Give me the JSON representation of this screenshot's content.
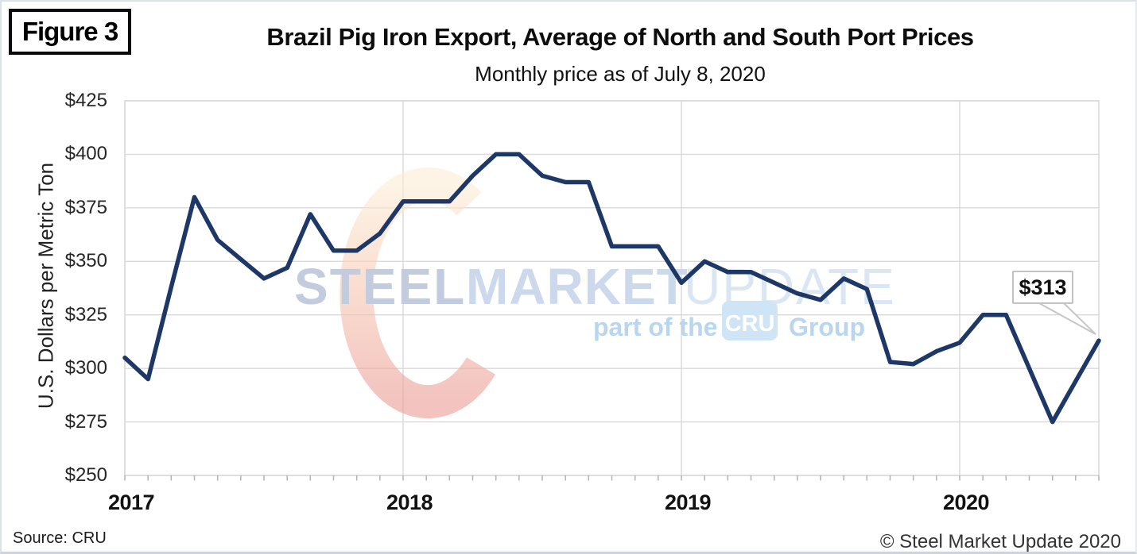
{
  "figure_label": "Figure 3",
  "title": "Brazil Pig Iron Export, Average of North and South Port Prices",
  "subtitle": "Monthly price as of July 8, 2020",
  "y_axis_title": "U.S. Dollars per Metric Ton",
  "source": "Source: CRU",
  "copyright": "© Steel Market Update 2020",
  "annotation": {
    "label": "$313",
    "value": 313
  },
  "watermark": {
    "word1": "STEEL",
    "word2": "MARKET",
    "word3": "UPDATE",
    "tagline_prefix": "part of the",
    "cru_badge": "CRU",
    "tagline_suffix": "Group"
  },
  "colors": {
    "line": "#1d3866",
    "gridline": "#d9d9d9",
    "tick": "#b3b3b3",
    "callout_border": "#c6c6c6",
    "watermark_steel": "#c3ccdf",
    "watermark_market": "#ccd9ec",
    "watermark_update": "#dae6f4",
    "watermark_tagline": "#b9d6ee",
    "cru_badge_fill": "#cfe4f5"
  },
  "chart_data": {
    "type": "line",
    "title": "Brazil Pig Iron Export, Average of North and South Port Prices",
    "subtitle": "Monthly price as of July 8, 2020",
    "ylabel": "U.S. Dollars per Metric Ton",
    "ylim": [
      250,
      425
    ],
    "y_step": 25,
    "grid": true,
    "x": [
      "Jan 2017",
      "Feb 2017",
      "Mar 2017",
      "Apr 2017",
      "May 2017",
      "Jun 2017",
      "Jul 2017",
      "Aug 2017",
      "Sep 2017",
      "Oct 2017",
      "Nov 2017",
      "Dec 2017",
      "Jan 2018",
      "Feb 2018",
      "Mar 2018",
      "Apr 2018",
      "May 2018",
      "Jun 2018",
      "Jul 2018",
      "Aug 2018",
      "Sep 2018",
      "Oct 2018",
      "Nov 2018",
      "Dec 2018",
      "Jan 2019",
      "Feb 2019",
      "Mar 2019",
      "Apr 2019",
      "May 2019",
      "Jun 2019",
      "Jul 2019",
      "Aug 2019",
      "Sep 2019",
      "Oct 2019",
      "Nov 2019",
      "Dec 2019",
      "Jan 2020",
      "Feb 2020",
      "Mar 2020",
      "Apr 2020",
      "May 2020",
      "Jun 2020",
      "Jul 2020"
    ],
    "values": [
      305,
      295,
      338,
      380,
      360,
      351,
      342,
      347,
      372,
      355,
      355,
      363,
      378,
      378,
      378,
      390,
      400,
      400,
      390,
      387,
      387,
      357,
      357,
      357,
      340,
      350,
      345,
      345,
      340,
      335,
      332,
      342,
      337,
      303,
      302,
      308,
      312,
      325,
      325,
      300,
      275,
      294,
      313
    ],
    "x_tick_labels": [
      "2017",
      "2018",
      "2019",
      "2020"
    ],
    "y_tick_labels": [
      "$250",
      "$275",
      "$300",
      "$325",
      "$350",
      "$375",
      "$400",
      "$425"
    ],
    "last_point_label": "$313"
  }
}
